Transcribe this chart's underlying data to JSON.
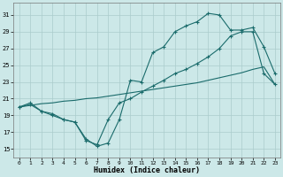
{
  "xlabel": "Humidex (Indice chaleur)",
  "background_color": "#cce8e8",
  "grid_color": "#aacccc",
  "line_color": "#1a6b6b",
  "xlim": [
    -0.5,
    23.5
  ],
  "ylim": [
    14.0,
    32.5
  ],
  "xticks": [
    0,
    1,
    2,
    3,
    4,
    5,
    6,
    7,
    8,
    9,
    10,
    11,
    12,
    13,
    14,
    15,
    16,
    17,
    18,
    19,
    20,
    21,
    22,
    23
  ],
  "yticks": [
    15,
    17,
    19,
    21,
    23,
    25,
    27,
    29,
    31
  ],
  "curve1_x": [
    0,
    1,
    2,
    3,
    4,
    5,
    6,
    7,
    8,
    9,
    10,
    11,
    12,
    13,
    14,
    15,
    16,
    17,
    18,
    19,
    20,
    21,
    22,
    23
  ],
  "curve1_y": [
    20.0,
    20.5,
    19.5,
    19.2,
    18.5,
    18.2,
    16.2,
    15.3,
    15.7,
    18.5,
    23.2,
    23.0,
    26.5,
    27.2,
    29.0,
    29.7,
    30.2,
    31.2,
    31.0,
    29.2,
    29.2,
    29.5,
    27.2,
    24.0
  ],
  "curve2_x": [
    0,
    1,
    2,
    3,
    4,
    5,
    6,
    7,
    8,
    9,
    10,
    11,
    12,
    13,
    14,
    15,
    16,
    17,
    18,
    19,
    20,
    21,
    22,
    23
  ],
  "curve2_y": [
    20.0,
    20.3,
    19.5,
    19.0,
    18.5,
    18.2,
    16.0,
    15.5,
    18.5,
    20.5,
    21.0,
    21.8,
    22.5,
    23.2,
    24.0,
    24.5,
    25.2,
    26.0,
    27.0,
    28.5,
    29.0,
    29.0,
    24.0,
    22.7
  ],
  "curve3_x": [
    0,
    1,
    2,
    3,
    4,
    5,
    6,
    7,
    8,
    9,
    10,
    11,
    12,
    13,
    14,
    15,
    16,
    17,
    18,
    19,
    20,
    21,
    22,
    23
  ],
  "curve3_y": [
    20.0,
    20.2,
    20.4,
    20.5,
    20.7,
    20.8,
    21.0,
    21.1,
    21.3,
    21.5,
    21.7,
    21.9,
    22.1,
    22.3,
    22.5,
    22.7,
    22.9,
    23.2,
    23.5,
    23.8,
    24.1,
    24.5,
    24.8,
    22.7
  ]
}
